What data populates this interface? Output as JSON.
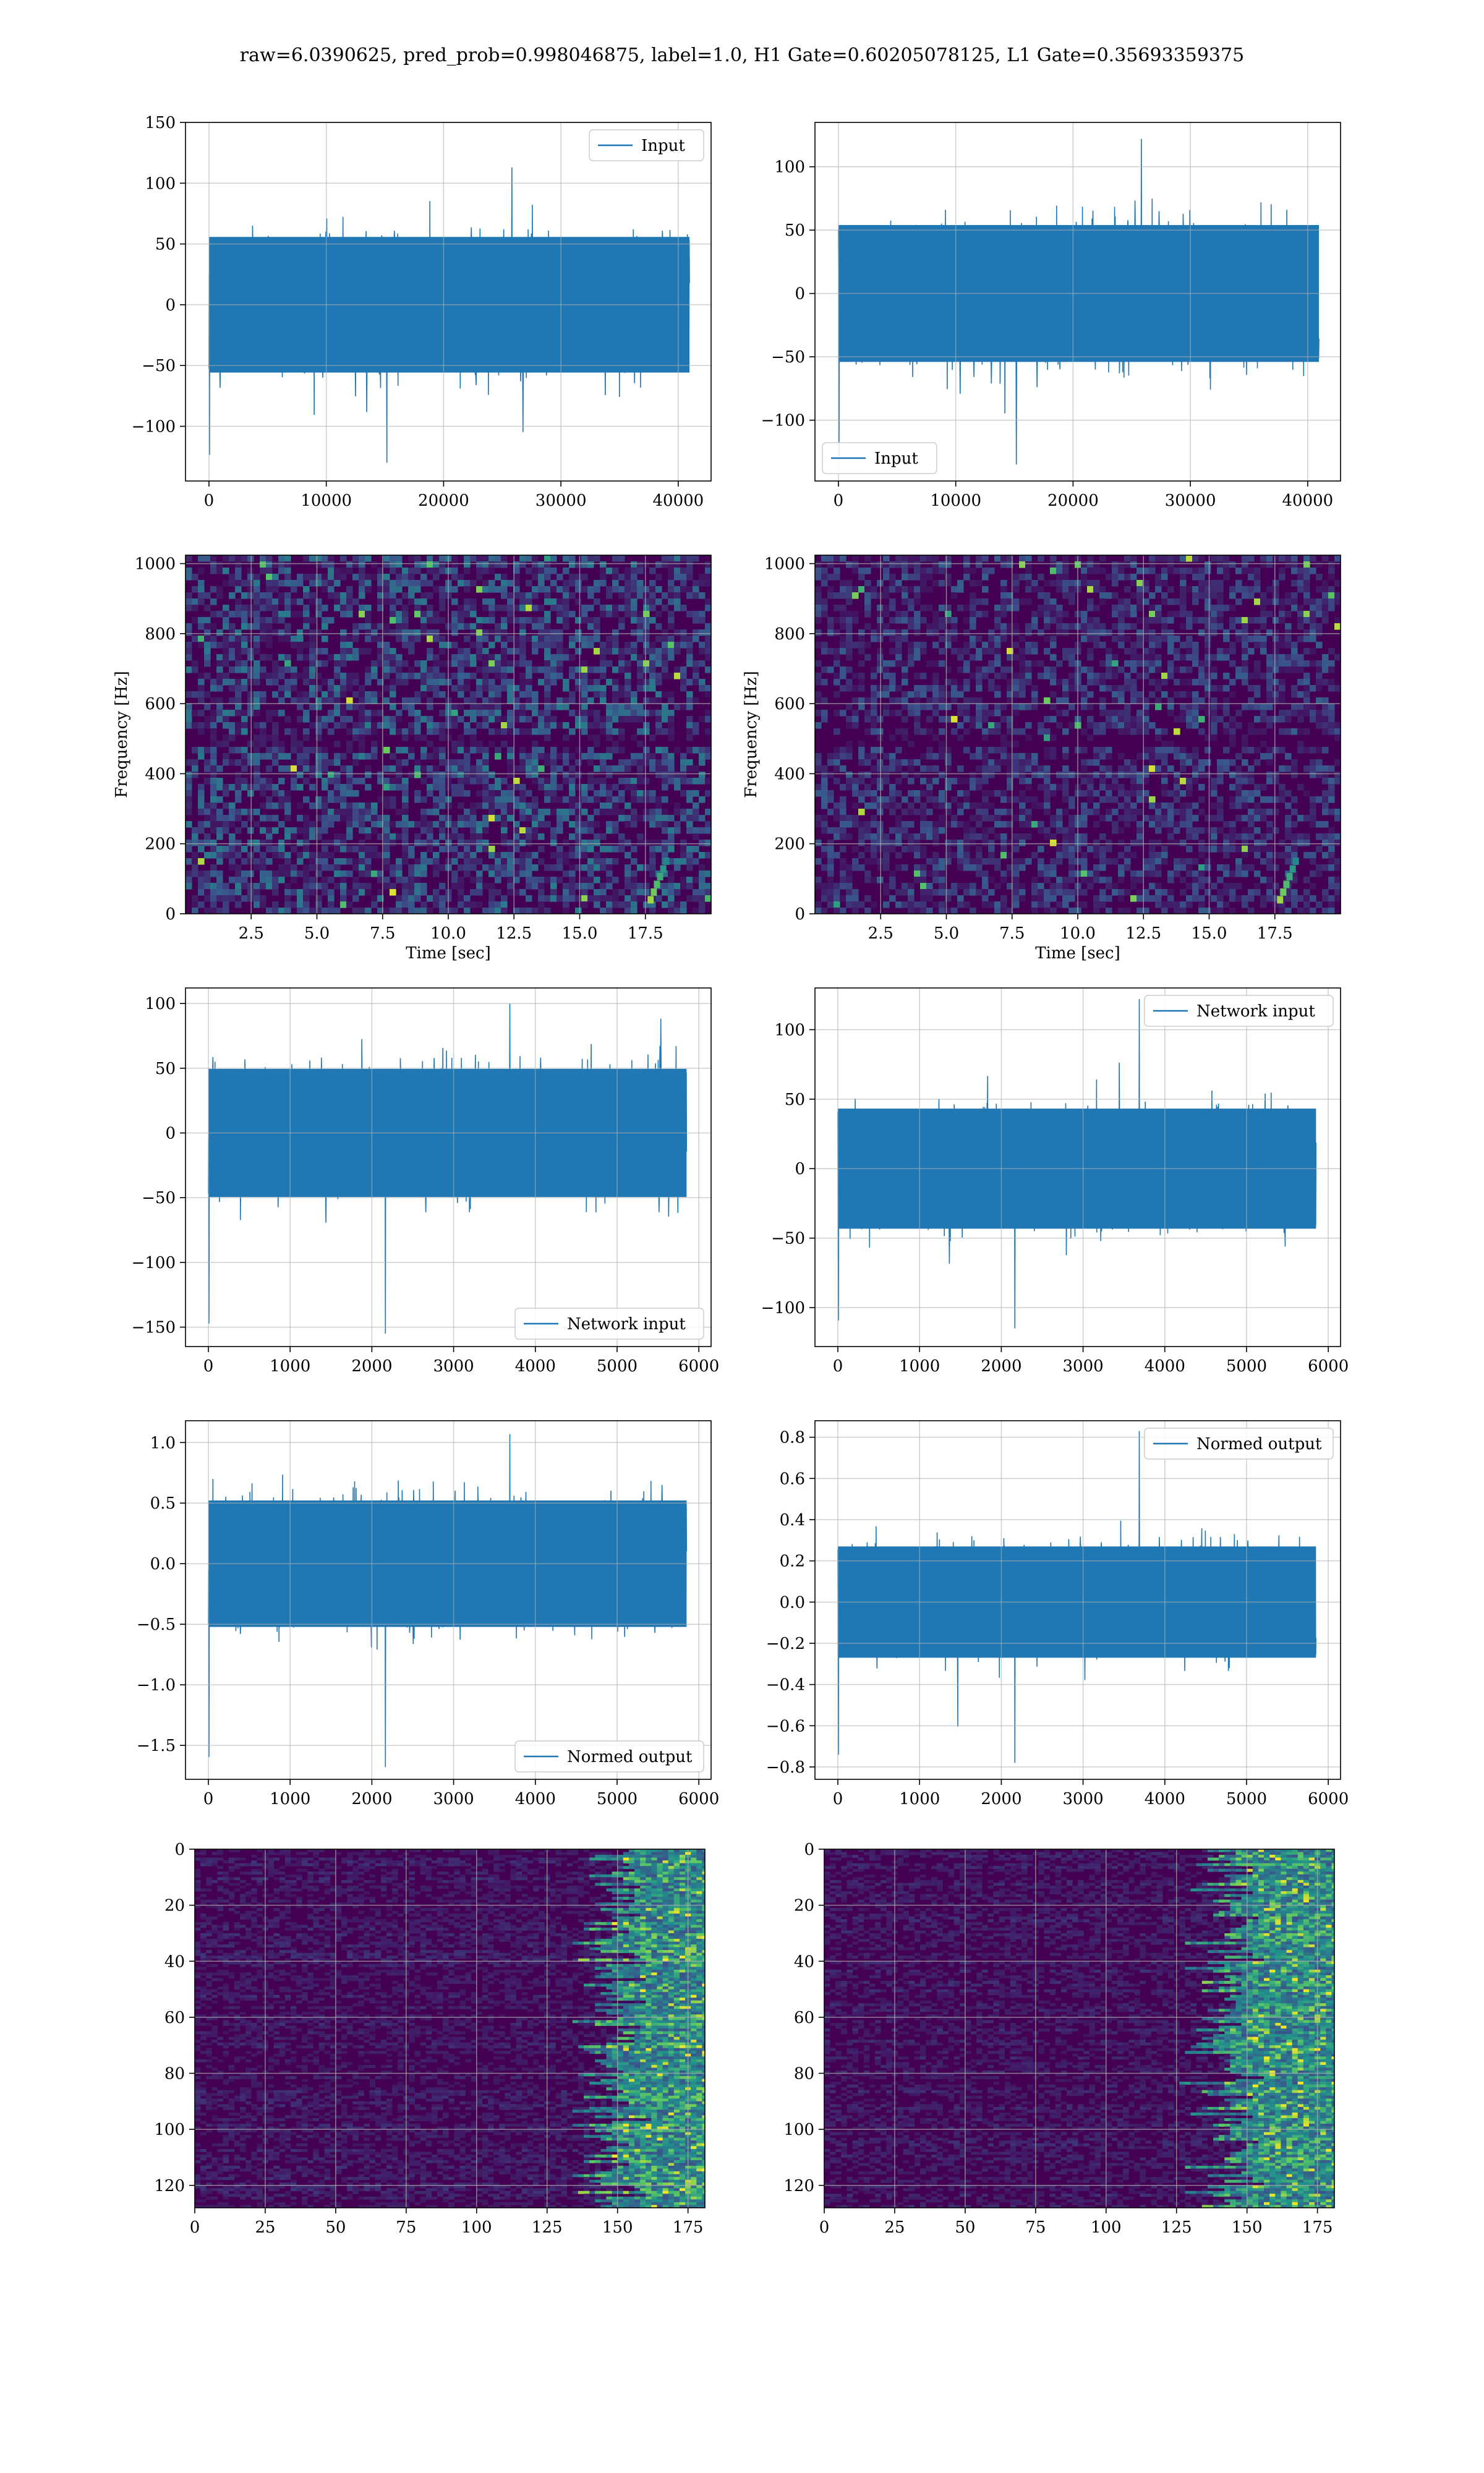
{
  "figure": {
    "title": "raw=6.0390625, pred_prob=0.998046875, label=1.0, H1 Gate=0.60205078125, L1 Gate=0.35693359375",
    "colors": {
      "line": "#1f77b4",
      "grid": "#b0b0b0",
      "viridis_dark": "#440154"
    }
  },
  "chart_data": [
    {
      "id": "input-h1",
      "type": "line",
      "legend": "Input",
      "legend_loc": "upper right",
      "xlim": [
        -2000,
        42800
      ],
      "ylim": [
        -145,
        150
      ],
      "xticks": [
        0,
        10000,
        20000,
        30000,
        40000
      ],
      "xtick_labels": [
        "0",
        "10000",
        "20000",
        "30000",
        "40000"
      ],
      "yticks": [
        150,
        100,
        50,
        0,
        -50,
        -100
      ],
      "ytick_labels": [
        "150",
        "100",
        "50",
        "0",
        "−50",
        "−100"
      ],
      "x_range": [
        0,
        40960
      ],
      "band": [
        -62,
        62
      ],
      "peaks": [
        -130,
        113
      ],
      "grid": true
    },
    {
      "id": "input-l1",
      "type": "line",
      "legend": "Input",
      "legend_loc": "lower left",
      "xlim": [
        -2000,
        42800
      ],
      "ylim": [
        -148,
        135
      ],
      "xticks": [
        0,
        10000,
        20000,
        30000,
        40000
      ],
      "xtick_labels": [
        "0",
        "10000",
        "20000",
        "30000",
        "40000"
      ],
      "yticks": [
        100,
        50,
        0,
        -50,
        -100
      ],
      "ytick_labels": [
        "100",
        "50",
        "0",
        "−50",
        "−100"
      ],
      "x_range": [
        0,
        40960
      ],
      "band": [
        -60,
        60
      ],
      "peaks": [
        -135,
        122
      ],
      "grid": true
    },
    {
      "id": "spectrogram-h1",
      "type": "heatmap",
      "xlabel": "Time [sec]",
      "ylabel": "Frequency [Hz]",
      "xlim": [
        0,
        20
      ],
      "ylim": [
        0,
        1024
      ],
      "xticks": [
        2.5,
        5.0,
        7.5,
        10.0,
        12.5,
        15.0,
        17.5
      ],
      "xtick_labels": [
        "2.5",
        "5.0",
        "7.5",
        "10.0",
        "12.5",
        "15.0",
        "17.5"
      ],
      "yticks": [
        0,
        200,
        400,
        600,
        800,
        1000
      ],
      "ytick_labels": [
        "0",
        "200",
        "400",
        "600",
        "800",
        "1000"
      ],
      "grid": true,
      "colormap": "viridis",
      "intensity": 0.42
    },
    {
      "id": "spectrogram-l1",
      "type": "heatmap",
      "xlabel": "Time [sec]",
      "ylabel": "Frequency [Hz]",
      "xlim": [
        0,
        20
      ],
      "ylim": [
        0,
        1024
      ],
      "xticks": [
        2.5,
        5.0,
        7.5,
        10.0,
        12.5,
        15.0,
        17.5
      ],
      "xtick_labels": [
        "2.5",
        "5.0",
        "7.5",
        "10.0",
        "12.5",
        "15.0",
        "17.5"
      ],
      "yticks": [
        0,
        200,
        400,
        600,
        800,
        1000
      ],
      "ytick_labels": [
        "0",
        "200",
        "400",
        "600",
        "800",
        "1000"
      ],
      "grid": true,
      "colormap": "viridis",
      "intensity": 0.3
    },
    {
      "id": "network-input-h1",
      "type": "line",
      "legend": "Network input",
      "legend_loc": "lower right",
      "xlim": [
        -280,
        6150
      ],
      "ylim": [
        -165,
        112
      ],
      "xticks": [
        0,
        1000,
        2000,
        3000,
        4000,
        5000,
        6000
      ],
      "xtick_labels": [
        "0",
        "1000",
        "2000",
        "3000",
        "4000",
        "5000",
        "6000"
      ],
      "yticks": [
        100,
        50,
        0,
        -50,
        -100,
        -150
      ],
      "ytick_labels": [
        "100",
        "50",
        "0",
        "−50",
        "−100",
        "−150"
      ],
      "x_range": [
        0,
        5850
      ],
      "band": [
        -55,
        55
      ],
      "peaks": [
        -155,
        100
      ],
      "grid": true
    },
    {
      "id": "network-input-l1",
      "type": "line",
      "legend": "Network input",
      "legend_loc": "upper right",
      "xlim": [
        -280,
        6150
      ],
      "ylim": [
        -128,
        130
      ],
      "xticks": [
        0,
        1000,
        2000,
        3000,
        4000,
        5000,
        6000
      ],
      "xtick_labels": [
        "0",
        "1000",
        "2000",
        "3000",
        "4000",
        "5000",
        "6000"
      ],
      "yticks": [
        100,
        50,
        0,
        -50,
        -100
      ],
      "ytick_labels": [
        "100",
        "50",
        "0",
        "−50",
        "−100"
      ],
      "x_range": [
        0,
        5850
      ],
      "band": [
        -48,
        48
      ],
      "peaks": [
        -115,
        122
      ],
      "grid": true
    },
    {
      "id": "normed-output-h1",
      "type": "line",
      "legend": "Normed output",
      "legend_loc": "lower right",
      "xlim": [
        -280,
        6150
      ],
      "ylim": [
        -1.78,
        1.18
      ],
      "xticks": [
        0,
        1000,
        2000,
        3000,
        4000,
        5000,
        6000
      ],
      "xtick_labels": [
        "0",
        "1000",
        "2000",
        "3000",
        "4000",
        "5000",
        "6000"
      ],
      "yticks": [
        1.0,
        0.5,
        0.0,
        -0.5,
        -1.0,
        -1.5
      ],
      "ytick_labels": [
        "1.0",
        "0.5",
        "0.0",
        "−0.5",
        "−1.0",
        "−1.5"
      ],
      "x_range": [
        0,
        5850
      ],
      "band": [
        -0.58,
        0.58
      ],
      "peaks": [
        -1.68,
        1.07
      ],
      "grid": true
    },
    {
      "id": "normed-output-l1",
      "type": "line",
      "legend": "Normed output",
      "legend_loc": "upper right",
      "xlim": [
        -280,
        6150
      ],
      "ylim": [
        -0.86,
        0.88
      ],
      "xticks": [
        0,
        1000,
        2000,
        3000,
        4000,
        5000,
        6000
      ],
      "xtick_labels": [
        "0",
        "1000",
        "2000",
        "3000",
        "4000",
        "5000",
        "6000"
      ],
      "yticks": [
        0.8,
        0.6,
        0.4,
        0.2,
        0.0,
        -0.2,
        -0.4,
        -0.6,
        -0.8
      ],
      "ytick_labels": [
        "0.8",
        "0.6",
        "0.4",
        "0.2",
        "0.0",
        "−0.2",
        "−0.4",
        "−0.6",
        "−0.8"
      ],
      "x_range": [
        0,
        5850
      ],
      "band": [
        -0.3,
        0.3
      ],
      "peaks": [
        -0.78,
        0.83
      ],
      "grid": true
    },
    {
      "id": "feature-map-h1",
      "type": "heatmap",
      "xlim": [
        0,
        181
      ],
      "ylim": [
        128,
        0
      ],
      "y_inverted": true,
      "xticks": [
        0,
        25,
        50,
        75,
        100,
        125,
        150,
        175
      ],
      "xtick_labels": [
        "0",
        "25",
        "50",
        "75",
        "100",
        "125",
        "150",
        "175"
      ],
      "yticks": [
        0,
        20,
        40,
        60,
        80,
        100,
        120
      ],
      "ytick_labels": [
        "0",
        "20",
        "40",
        "60",
        "80",
        "100",
        "120"
      ],
      "grid": true,
      "colormap": "viridis",
      "hot_columns": [
        145,
        181
      ]
    },
    {
      "id": "feature-map-l1",
      "type": "heatmap",
      "xlim": [
        0,
        181
      ],
      "ylim": [
        128,
        0
      ],
      "y_inverted": true,
      "xticks": [
        0,
        25,
        50,
        75,
        100,
        125,
        150,
        175
      ],
      "xtick_labels": [
        "0",
        "25",
        "50",
        "75",
        "100",
        "125",
        "150",
        "175"
      ],
      "yticks": [
        0,
        20,
        40,
        60,
        80,
        100,
        120
      ],
      "ytick_labels": [
        "0",
        "20",
        "40",
        "60",
        "80",
        "100",
        "120"
      ],
      "grid": true,
      "colormap": "viridis",
      "hot_columns": [
        140,
        181
      ]
    }
  ]
}
